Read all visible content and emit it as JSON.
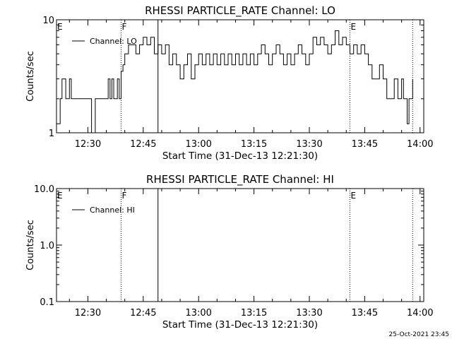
{
  "footer_timestamp": "25-Oct-2021 23:45",
  "chart_data": [
    {
      "type": "line",
      "title": "RHESSI PARTICLE_RATE Channel: LO",
      "xlabel": "Start Time (31-Dec-13 12:21:30)",
      "ylabel": "Counts/sec",
      "xlim": [
        "12:21:30",
        "14:01:00"
      ],
      "ylim": [
        1,
        10
      ],
      "yscale": "log",
      "xticks": [
        "12:30",
        "12:45",
        "13:00",
        "13:15",
        "13:30",
        "13:45",
        "14:00"
      ],
      "yticks": [
        "1",
        "10"
      ],
      "legend": {
        "position": "top-left",
        "entries": [
          "Channel: LO"
        ]
      },
      "markers": [
        {
          "time": "12:21:30",
          "label": "E",
          "style": "dotted"
        },
        {
          "time": "12:39:00",
          "label": "F",
          "style": "dotted"
        },
        {
          "time": "12:49:00",
          "label": "",
          "style": "solid"
        },
        {
          "time": "13:41:00",
          "label": "E",
          "style": "dotted"
        },
        {
          "time": "13:58:00",
          "label": "",
          "style": "dotted"
        }
      ],
      "series": [
        {
          "name": "Channel: LO",
          "x": [
            "12:21:30",
            "12:22:30",
            "12:23:00",
            "12:24:00",
            "12:25:00",
            "12:25:30",
            "12:26:00",
            "12:26:30",
            "12:30:00",
            "12:30:30",
            "12:31:00",
            "12:32:00",
            "12:34:00",
            "12:35:00",
            "12:35:30",
            "12:36:00",
            "12:36:30",
            "12:37:00",
            "12:37:30",
            "12:38:00",
            "12:38:30",
            "12:39:00",
            "12:39:30",
            "12:40:00",
            "12:41:00",
            "12:42:00",
            "12:43:00",
            "12:44:00",
            "12:45:00",
            "12:46:00",
            "12:47:00",
            "12:48:00",
            "12:49:00",
            "12:50:00",
            "12:51:00",
            "12:52:00",
            "12:53:00",
            "12:54:00",
            "12:55:00",
            "12:56:00",
            "12:57:00",
            "12:58:00",
            "12:59:00",
            "13:00:00",
            "13:01:00",
            "13:02:00",
            "13:03:00",
            "13:04:00",
            "13:05:00",
            "13:06:00",
            "13:07:00",
            "13:08:00",
            "13:09:00",
            "13:10:00",
            "13:11:00",
            "13:12:00",
            "13:13:00",
            "13:14:00",
            "13:15:00",
            "13:16:00",
            "13:17:00",
            "13:18:00",
            "13:19:00",
            "13:20:00",
            "13:21:00",
            "13:22:00",
            "13:23:00",
            "13:24:00",
            "13:25:00",
            "13:26:00",
            "13:27:00",
            "13:28:00",
            "13:29:00",
            "13:30:00",
            "13:31:00",
            "13:32:00",
            "13:33:00",
            "13:34:00",
            "13:35:00",
            "13:36:00",
            "13:37:00",
            "13:38:00",
            "13:39:00",
            "13:40:00",
            "13:41:00",
            "13:42:00",
            "13:43:00",
            "13:44:00",
            "13:45:00",
            "13:46:00",
            "13:47:00",
            "13:48:00",
            "13:49:00",
            "13:50:00",
            "13:51:00",
            "13:52:00",
            "13:53:00",
            "13:54:00",
            "13:55:00",
            "13:55:30",
            "13:56:00",
            "13:56:30",
            "13:57:00",
            "13:57:30",
            "13:58:00"
          ],
          "values": [
            1.2,
            2,
            3,
            2,
            3,
            2,
            2,
            2,
            2,
            2,
            1,
            2,
            2,
            2,
            3,
            2,
            3,
            2,
            2,
            3,
            2,
            3.5,
            4,
            5,
            6,
            6,
            5,
            6,
            7,
            6,
            7,
            5,
            6,
            5,
            6,
            4,
            5,
            4,
            3,
            4,
            5,
            3,
            4,
            5,
            4,
            5,
            4,
            5,
            4,
            5,
            4,
            5,
            4,
            5,
            4,
            5,
            4,
            5,
            4,
            5,
            6,
            5,
            4,
            5,
            6,
            5,
            4,
            5,
            4,
            5,
            6,
            5,
            4,
            5,
            7,
            6,
            7,
            6,
            5,
            6,
            8,
            6,
            7,
            6,
            5,
            6,
            5,
            6,
            5,
            4,
            3,
            3,
            4,
            3,
            2,
            2,
            3,
            2,
            3,
            2,
            2,
            1.2,
            2,
            2,
            3
          ]
        }
      ]
    },
    {
      "type": "line",
      "title": "RHESSI PARTICLE_RATE Channel: HI",
      "xlabel": "Start Time (31-Dec-13 12:21:30)",
      "ylabel": "Counts/sec",
      "xlim": [
        "12:21:30",
        "14:01:00"
      ],
      "ylim": [
        0.1,
        10
      ],
      "yscale": "log",
      "xticks": [
        "12:30",
        "12:45",
        "13:00",
        "13:15",
        "13:30",
        "13:45",
        "14:00"
      ],
      "yticks": [
        "0.1",
        "1.0",
        "10.0"
      ],
      "legend": {
        "position": "top-left",
        "entries": [
          "Channel: HI"
        ]
      },
      "markers": [
        {
          "time": "12:21:30",
          "label": "E",
          "style": "dotted"
        },
        {
          "time": "12:39:00",
          "label": "F",
          "style": "dotted"
        },
        {
          "time": "12:49:00",
          "label": "",
          "style": "solid"
        },
        {
          "time": "13:41:00",
          "label": "E",
          "style": "dotted"
        },
        {
          "time": "13:58:00",
          "label": "",
          "style": "dotted"
        }
      ],
      "series": [
        {
          "name": "Channel: HI",
          "x": [],
          "values": []
        }
      ]
    }
  ]
}
